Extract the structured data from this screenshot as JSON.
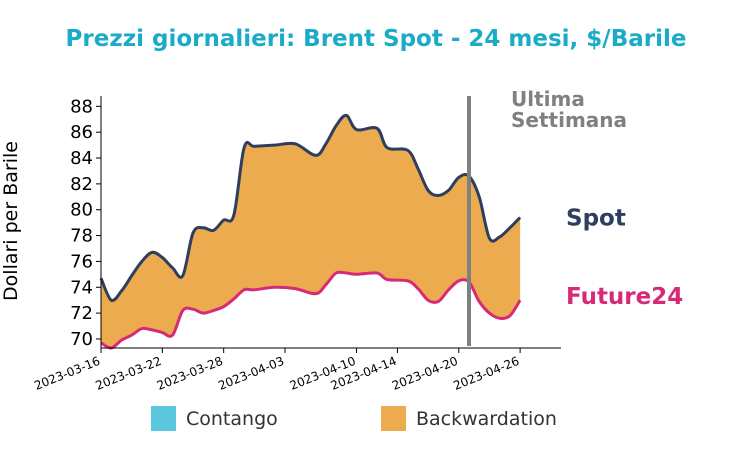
{
  "chart_data": {
    "type": "area",
    "title": "Prezzi giornalieri: Brent Spot - 24 mesi, $/Barile",
    "ylabel": "Dollari per Barile",
    "xlabel": "",
    "ylim": [
      69.3,
      88.8
    ],
    "yticks": [
      70,
      72,
      74,
      76,
      78,
      80,
      82,
      84,
      86,
      88
    ],
    "x_range": [
      "2023-03-16",
      "2023-04-30"
    ],
    "xticks": [
      "2023-03-16",
      "2023-03-22",
      "2023-03-28",
      "2023-04-03",
      "2023-04-10",
      "2023-04-14",
      "2023-04-20",
      "2023-04-26"
    ],
    "annotation": {
      "lines": [
        "Ultima",
        "Settimana"
      ],
      "x": "2023-04-21",
      "color": "#808080"
    },
    "legend": {
      "placement": "bottom",
      "entries": [
        {
          "label": "Contango",
          "color": "#5bc8de"
        },
        {
          "label": "Backwardation",
          "color": "#ebab4e"
        }
      ]
    },
    "colors": {
      "title": "#1aabc7",
      "fill": "#ebab4e"
    },
    "series": [
      {
        "name": "Spot",
        "color": "#2e3e5e",
        "points": [
          [
            "2023-03-16",
            74.7
          ],
          [
            "2023-03-17",
            73.0
          ],
          [
            "2023-03-18",
            73.7
          ],
          [
            "2023-03-19",
            74.9
          ],
          [
            "2023-03-20",
            76.0
          ],
          [
            "2023-03-21",
            76.7
          ],
          [
            "2023-03-22",
            76.3
          ],
          [
            "2023-03-23",
            75.5
          ],
          [
            "2023-03-24",
            74.9
          ],
          [
            "2023-03-25",
            78.2
          ],
          [
            "2023-03-26",
            78.6
          ],
          [
            "2023-03-27",
            78.4
          ],
          [
            "2023-03-28",
            79.2
          ],
          [
            "2023-03-29",
            79.6
          ],
          [
            "2023-03-30",
            84.8
          ],
          [
            "2023-03-31",
            84.9
          ],
          [
            "2023-04-02",
            85.0
          ],
          [
            "2023-04-04",
            85.1
          ],
          [
            "2023-04-06",
            84.2
          ],
          [
            "2023-04-07",
            85.1
          ],
          [
            "2023-04-08",
            86.5
          ],
          [
            "2023-04-09",
            87.3
          ],
          [
            "2023-04-10",
            86.2
          ],
          [
            "2023-04-12",
            86.3
          ],
          [
            "2023-04-13",
            84.8
          ],
          [
            "2023-04-15",
            84.6
          ],
          [
            "2023-04-16",
            83.2
          ],
          [
            "2023-04-17",
            81.5
          ],
          [
            "2023-04-18",
            81.1
          ],
          [
            "2023-04-19",
            81.5
          ],
          [
            "2023-04-20",
            82.5
          ],
          [
            "2023-04-21",
            82.6
          ],
          [
            "2023-04-22",
            81.0
          ],
          [
            "2023-04-23",
            77.8
          ],
          [
            "2023-04-24",
            77.9
          ],
          [
            "2023-04-25",
            78.6
          ],
          [
            "2023-04-26",
            79.4
          ]
        ]
      },
      {
        "name": "Future24",
        "color": "#d62a78",
        "points": [
          [
            "2023-03-16",
            69.7
          ],
          [
            "2023-03-17",
            69.3
          ],
          [
            "2023-03-18",
            69.9
          ],
          [
            "2023-03-19",
            70.3
          ],
          [
            "2023-03-20",
            70.8
          ],
          [
            "2023-03-21",
            70.7
          ],
          [
            "2023-03-22",
            70.5
          ],
          [
            "2023-03-23",
            70.3
          ],
          [
            "2023-03-24",
            72.2
          ],
          [
            "2023-03-25",
            72.3
          ],
          [
            "2023-03-26",
            72.0
          ],
          [
            "2023-03-27",
            72.2
          ],
          [
            "2023-03-28",
            72.5
          ],
          [
            "2023-03-29",
            73.1
          ],
          [
            "2023-03-30",
            73.8
          ],
          [
            "2023-03-31",
            73.8
          ],
          [
            "2023-04-02",
            74.0
          ],
          [
            "2023-04-04",
            73.9
          ],
          [
            "2023-04-06",
            73.5
          ],
          [
            "2023-04-07",
            74.2
          ],
          [
            "2023-04-08",
            75.1
          ],
          [
            "2023-04-09",
            75.1
          ],
          [
            "2023-04-10",
            75.0
          ],
          [
            "2023-04-12",
            75.1
          ],
          [
            "2023-04-13",
            74.6
          ],
          [
            "2023-04-15",
            74.5
          ],
          [
            "2023-04-16",
            73.9
          ],
          [
            "2023-04-17",
            73.0
          ],
          [
            "2023-04-18",
            72.9
          ],
          [
            "2023-04-19",
            73.8
          ],
          [
            "2023-04-20",
            74.5
          ],
          [
            "2023-04-21",
            74.4
          ],
          [
            "2023-04-22",
            72.9
          ],
          [
            "2023-04-23",
            72.0
          ],
          [
            "2023-04-24",
            71.6
          ],
          [
            "2023-04-25",
            71.8
          ],
          [
            "2023-04-26",
            73.0
          ]
        ]
      }
    ]
  }
}
